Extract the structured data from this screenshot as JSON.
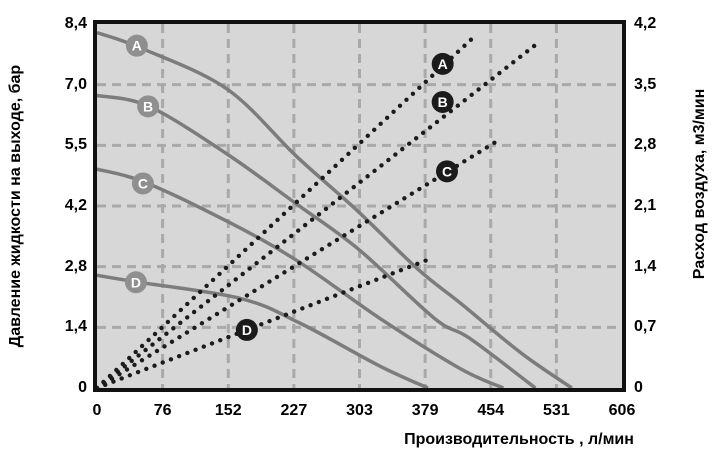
{
  "page": {
    "background": "#ffffff"
  },
  "chart_data": {
    "type": "line",
    "title": "",
    "x_axis": {
      "label": "Производительность , л/мин",
      "range": [
        0,
        606
      ],
      "ticks": [
        "0",
        "76",
        "152",
        "227",
        "303",
        "379",
        "454",
        "531",
        "606"
      ]
    },
    "y_left": {
      "label": "Давление жидкости на выходе, бар",
      "range": [
        0,
        8.4
      ],
      "ticks_bottom_to_top": [
        "0",
        "1,4",
        "2,8",
        "4,2",
        "5,5",
        "7,0",
        "8,4"
      ]
    },
    "y_right": {
      "label": "Расход воздуха, м3/мин",
      "range": [
        0,
        4.2
      ],
      "ticks_bottom_to_top": [
        "0",
        "0,7",
        "1,4",
        "2,1",
        "2,8",
        "3,5",
        "4,2"
      ]
    },
    "grid": {
      "show": true,
      "style": "dashed",
      "color": "#a9a9a9"
    },
    "plot_background": "#d7d7d7",
    "border_color": "#111111",
    "colors": {
      "pressure_curve": "#7c7c7c",
      "air_curve": "#1b1b1b",
      "pressure_label_fill": "#8f8f8f",
      "air_label_fill": "#1b1b1b",
      "label_text": "#ffffff"
    },
    "series": [
      {
        "name": "pressure-A",
        "style": "solid",
        "axis": "left",
        "label_marker": {
          "text": "A",
          "at": [
            46,
            7.9
          ]
        },
        "points": [
          [
            0,
            8.2
          ],
          [
            50,
            7.85
          ],
          [
            150,
            6.9
          ],
          [
            230,
            5.35
          ],
          [
            300,
            4.1
          ],
          [
            370,
            2.75
          ],
          [
            420,
            1.95
          ],
          [
            490,
            0.8
          ],
          [
            548,
            0
          ]
        ]
      },
      {
        "name": "pressure-B",
        "style": "solid",
        "axis": "left",
        "label_marker": {
          "text": "B",
          "at": [
            59,
            6.5
          ]
        },
        "points": [
          [
            0,
            6.75
          ],
          [
            60,
            6.5
          ],
          [
            150,
            5.4
          ],
          [
            230,
            4.25
          ],
          [
            302,
            3.2
          ],
          [
            390,
            1.6
          ],
          [
            430,
            1.15
          ],
          [
            506,
            0
          ]
        ]
      },
      {
        "name": "pressure-C",
        "style": "solid",
        "axis": "left",
        "label_marker": {
          "text": "C",
          "at": [
            53,
            4.72
          ]
        },
        "points": [
          [
            0,
            5.05
          ],
          [
            55,
            4.75
          ],
          [
            150,
            3.85
          ],
          [
            230,
            2.95
          ],
          [
            327,
            1.6
          ],
          [
            419,
            0.45
          ],
          [
            469,
            0
          ]
        ]
      },
      {
        "name": "pressure-D",
        "style": "solid",
        "axis": "left",
        "label_marker": {
          "text": "D",
          "at": [
            45,
            2.44
          ]
        },
        "points": [
          [
            0,
            2.6
          ],
          [
            45,
            2.45
          ],
          [
            165,
            2.07
          ],
          [
            234,
            1.5
          ],
          [
            327,
            0.5
          ],
          [
            382,
            0
          ]
        ]
      },
      {
        "name": "air-A",
        "style": "dotted",
        "axis": "right",
        "label_marker": {
          "text": "A",
          "at": [
            399,
            3.74
          ]
        },
        "points": [
          [
            0,
            0
          ],
          [
            435,
            4.05
          ]
        ]
      },
      {
        "name": "air-B",
        "style": "dotted",
        "axis": "right",
        "label_marker": {
          "text": "B",
          "at": [
            399,
            3.3
          ]
        },
        "points": [
          [
            0,
            0
          ],
          [
            505,
            3.95
          ]
        ]
      },
      {
        "name": "air-C",
        "style": "dotted",
        "axis": "right",
        "label_marker": {
          "text": "C",
          "at": [
            404,
            2.5
          ]
        },
        "points": [
          [
            0,
            0
          ],
          [
            462,
            2.85
          ]
        ]
      },
      {
        "name": "air-D",
        "style": "dotted",
        "axis": "right",
        "label_marker": {
          "text": "D",
          "at": [
            173,
            0.67
          ]
        },
        "points": [
          [
            0,
            0
          ],
          [
            387,
            1.5
          ]
        ]
      }
    ]
  }
}
